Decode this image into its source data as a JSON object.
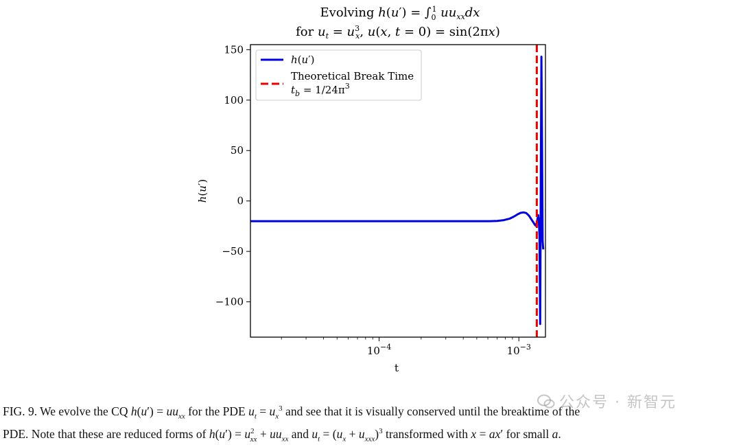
{
  "chart_data": {
    "type": "line",
    "title": "Evolving h(u′) = ∫₀¹ u u_xx dx",
    "subtitle": "for u_t = u_x³, u(x, t = 0) = sin(2πx)",
    "xlabel": "t",
    "ylabel": "h(u′)",
    "xscale": "log",
    "xlim": [
      1.2e-05,
      0.00155
    ],
    "ylim": [
      -135,
      155
    ],
    "x_tick_labels": [
      "10⁻⁴",
      "10⁻³"
    ],
    "x_ticks": [
      0.0001,
      0.001
    ],
    "y_ticks": [
      150,
      100,
      50,
      0,
      -50,
      -100
    ],
    "y_tick_labels": [
      "150",
      "100",
      "50",
      "0",
      "−50",
      "−100"
    ],
    "grid": false,
    "legend_position": "top-left",
    "series": [
      {
        "name": "h(u′)",
        "color": "#0000dd",
        "style": "solid",
        "x": [
          1.2e-05,
          5e-05,
          0.0002,
          0.0005,
          0.00062,
          0.0007,
          0.00078,
          0.00086,
          0.00092,
          0.00098,
          0.00103,
          0.00108,
          0.00113,
          0.00118,
          0.00122,
          0.00126,
          0.0013,
          0.00132,
          0.00134,
          0.00136,
          0.001375,
          0.00139,
          0.001405,
          0.00142,
          0.001435,
          0.00145,
          0.001465,
          0.00148,
          0.001495
        ],
        "y": [
          -20,
          -20,
          -20,
          -20,
          -20,
          -19.8,
          -19,
          -17.5,
          -15.5,
          -13.2,
          -11.8,
          -11.3,
          -12,
          -14.5,
          -17.5,
          -20.5,
          -23.5,
          -24.5,
          -22,
          -18,
          -14,
          -20,
          -35,
          -122,
          20,
          143,
          60,
          -40,
          -48
        ]
      },
      {
        "name": "Theoretical Break Time",
        "name_line2": "t_b = 1/24π³",
        "color": "#ee0000",
        "style": "dashed",
        "vline_x": 0.001344
      }
    ]
  },
  "caption": {
    "line1": "FIG. 9. We evolve the CQ h(u′) = u u_xx for the PDE u_t = u_x³ and see that it is visually conserved until the breaktime of the",
    "line2": "PDE. Note that these are reduced forms of h(u′) = u_xx² + u u_xx and u_t = (u_x + u_xxx)³ transformed with x = ax′ for small a."
  },
  "watermark": {
    "text": "公众号 · 新智元"
  }
}
